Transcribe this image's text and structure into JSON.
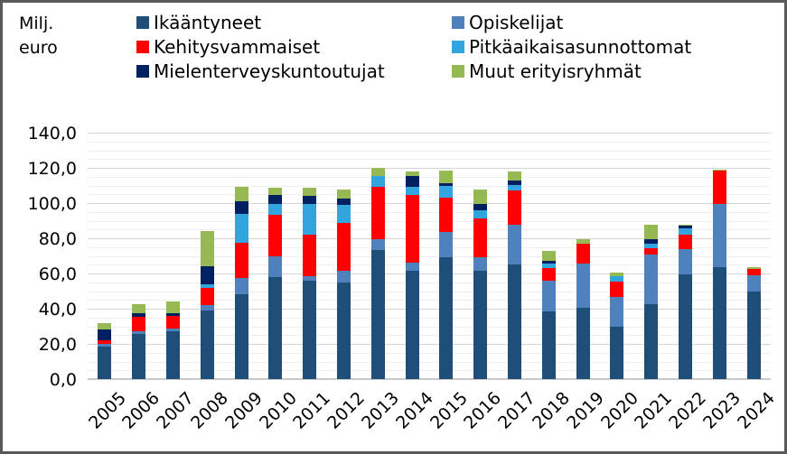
{
  "header": {
    "unit_line1": "Milj.",
    "unit_line2": "euro"
  },
  "chart_data": {
    "type": "bar",
    "stacked": true,
    "title": "",
    "xlabel": "",
    "ylabel": "Milj. euro",
    "grid": true,
    "legend_position": "top",
    "ylim": [
      0,
      140
    ],
    "ytick_step": 20,
    "minor_gridline_step": 5,
    "ytick_labels": [
      "0,0",
      "20,0",
      "40,0",
      "60,0",
      "80,0",
      "100,0",
      "120,0",
      "140,0"
    ],
    "categories": [
      "2005",
      "2006",
      "2007",
      "2008",
      "2009",
      "2010",
      "2011",
      "2012",
      "2013",
      "2014",
      "2015",
      "2016",
      "2017",
      "2018",
      "2019",
      "2020",
      "2021",
      "2022",
      "2023",
      "2024"
    ],
    "series": [
      {
        "name": "Ikääntyneet",
        "color": "#1F4E79",
        "values": [
          18.5,
          25.5,
          27,
          39,
          48,
          58,
          56,
          55,
          73.5,
          61.5,
          69,
          61.5,
          65,
          38.5,
          40.5,
          30,
          42.5,
          59.5,
          63.5,
          50
        ]
      },
      {
        "name": "Opiskelijat",
        "color": "#4F81BD",
        "values": [
          1.5,
          1.5,
          1.5,
          3,
          9.5,
          11.5,
          2.5,
          6.5,
          6,
          4.5,
          14.5,
          7.5,
          22.5,
          17.5,
          25,
          16.5,
          28.5,
          14.5,
          36,
          9
        ]
      },
      {
        "name": "Kehitysvammaiset",
        "color": "#FF0000",
        "values": [
          2,
          8.5,
          7.5,
          10,
          20,
          24,
          23.5,
          27,
          30,
          38.5,
          19.5,
          22.5,
          19.5,
          7,
          11.5,
          9,
          3.5,
          8,
          19,
          3.5
        ]
      },
      {
        "name": "Pitkäaikaisasunnottomat",
        "color": "#33A5DE",
        "values": [
          0,
          0,
          0,
          2,
          16.5,
          6,
          17.5,
          10.5,
          6,
          5,
          7,
          4.5,
          3.5,
          2.5,
          0,
          3,
          2.5,
          3.5,
          0,
          0
        ]
      },
      {
        "name": "Mielenterveyskuntoutujat",
        "color": "#002060",
        "values": [
          6,
          2,
          1.5,
          10,
          7,
          5,
          4.5,
          3.5,
          0,
          6,
          1.5,
          3.5,
          2.5,
          1.5,
          0,
          0,
          2.5,
          1.5,
          0,
          0
        ]
      },
      {
        "name": "Muut erityisryhmät",
        "color": "#97B954",
        "values": [
          4,
          5,
          6.5,
          20,
          8.5,
          4,
          4.5,
          5,
          4.5,
          2.5,
          7,
          8,
          5,
          6,
          2.5,
          2,
          8,
          0.5,
          0.5,
          1
        ]
      }
    ]
  }
}
